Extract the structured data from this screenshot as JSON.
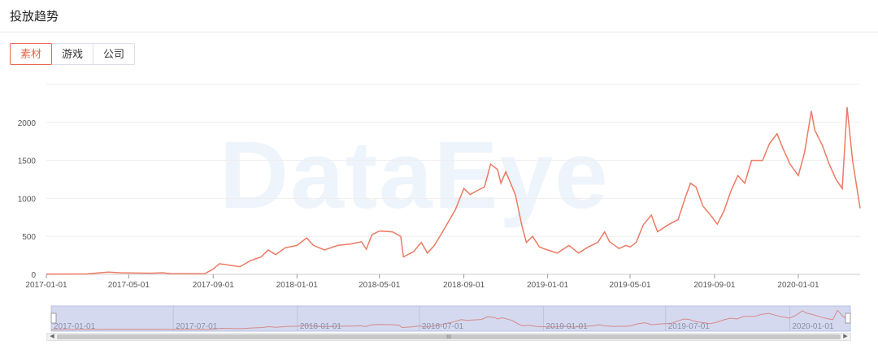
{
  "header": {
    "title": "投放趋势"
  },
  "tabs": [
    {
      "label": "素材",
      "active": true
    },
    {
      "label": "游戏",
      "active": false
    },
    {
      "label": "公司",
      "active": false
    }
  ],
  "watermark": "DataEye",
  "navigator": {
    "labels": [
      "2017-01-01",
      "2017-07-01",
      "2018-01-01",
      "2018-07-01",
      "2019-01-01",
      "2019-07-01",
      "2020-01-01"
    ],
    "scroll_grip": "III"
  },
  "colors": {
    "accent": "#e8694f",
    "line": "#ec7a63",
    "navigator_bg": "#d4d9ef"
  },
  "chart_data": {
    "type": "line",
    "title": "",
    "xlabel": "",
    "ylabel": "",
    "ylim": [
      0,
      2500
    ],
    "yticks": [
      0,
      500,
      1000,
      1500,
      2000
    ],
    "xticks": [
      "2017-01-01",
      "2017-05-01",
      "2017-09-01",
      "2018-01-01",
      "2018-05-01",
      "2018-09-01",
      "2019-01-01",
      "2019-05-01",
      "2019-09-01",
      "2020-01-01"
    ],
    "x_start": "2017-01-01",
    "x_end": "2020-03-31",
    "grid": true,
    "series": [
      {
        "values": [
          [
            "2017-01-01",
            2
          ],
          [
            "2017-03-01",
            5
          ],
          [
            "2017-04-01",
            30
          ],
          [
            "2017-04-20",
            20
          ],
          [
            "2017-06-01",
            15
          ],
          [
            "2017-06-20",
            20
          ],
          [
            "2017-07-01",
            10
          ],
          [
            "2017-08-01",
            8
          ],
          [
            "2017-08-20",
            10
          ],
          [
            "2017-09-01",
            70
          ],
          [
            "2017-09-10",
            140
          ],
          [
            "2017-09-25",
            120
          ],
          [
            "2017-10-10",
            100
          ],
          [
            "2017-10-25",
            180
          ],
          [
            "2017-11-10",
            230
          ],
          [
            "2017-11-20",
            320
          ],
          [
            "2017-12-01",
            260
          ],
          [
            "2017-12-15",
            350
          ],
          [
            "2018-01-01",
            380
          ],
          [
            "2018-01-15",
            480
          ],
          [
            "2018-01-25",
            380
          ],
          [
            "2018-02-10",
            320
          ],
          [
            "2018-03-01",
            380
          ],
          [
            "2018-03-20",
            400
          ],
          [
            "2018-04-05",
            430
          ],
          [
            "2018-04-12",
            330
          ],
          [
            "2018-04-20",
            520
          ],
          [
            "2018-05-01",
            570
          ],
          [
            "2018-05-20",
            560
          ],
          [
            "2018-06-01",
            500
          ],
          [
            "2018-06-05",
            230
          ],
          [
            "2018-06-20",
            300
          ],
          [
            "2018-07-01",
            420
          ],
          [
            "2018-07-10",
            280
          ],
          [
            "2018-07-20",
            380
          ],
          [
            "2018-08-01",
            560
          ],
          [
            "2018-08-10",
            700
          ],
          [
            "2018-08-20",
            860
          ],
          [
            "2018-09-01",
            1130
          ],
          [
            "2018-09-10",
            1050
          ],
          [
            "2018-09-20",
            1100
          ],
          [
            "2018-10-01",
            1150
          ],
          [
            "2018-10-10",
            1450
          ],
          [
            "2018-10-20",
            1380
          ],
          [
            "2018-10-25",
            1200
          ],
          [
            "2018-11-01",
            1350
          ],
          [
            "2018-11-15",
            1050
          ],
          [
            "2018-11-25",
            620
          ],
          [
            "2018-12-01",
            420
          ],
          [
            "2018-12-10",
            500
          ],
          [
            "2018-12-20",
            360
          ],
          [
            "2019-01-01",
            320
          ],
          [
            "2019-01-15",
            280
          ],
          [
            "2019-02-01",
            380
          ],
          [
            "2019-02-15",
            280
          ],
          [
            "2019-03-01",
            360
          ],
          [
            "2019-03-15",
            420
          ],
          [
            "2019-03-25",
            560
          ],
          [
            "2019-04-01",
            430
          ],
          [
            "2019-04-15",
            340
          ],
          [
            "2019-04-25",
            380
          ],
          [
            "2019-05-01",
            360
          ],
          [
            "2019-05-10",
            420
          ],
          [
            "2019-05-20",
            650
          ],
          [
            "2019-06-01",
            780
          ],
          [
            "2019-06-10",
            560
          ],
          [
            "2019-06-25",
            650
          ],
          [
            "2019-07-10",
            720
          ],
          [
            "2019-07-20",
            1000
          ],
          [
            "2019-07-28",
            1200
          ],
          [
            "2019-08-05",
            1150
          ],
          [
            "2019-08-15",
            900
          ],
          [
            "2019-08-28",
            760
          ],
          [
            "2019-09-05",
            660
          ],
          [
            "2019-09-15",
            840
          ],
          [
            "2019-09-25",
            1100
          ],
          [
            "2019-10-05",
            1300
          ],
          [
            "2019-10-15",
            1200
          ],
          [
            "2019-10-25",
            1500
          ],
          [
            "2019-11-10",
            1500
          ],
          [
            "2019-11-20",
            1720
          ],
          [
            "2019-12-01",
            1850
          ],
          [
            "2019-12-10",
            1650
          ],
          [
            "2019-12-20",
            1450
          ],
          [
            "2020-01-01",
            1300
          ],
          [
            "2020-01-10",
            1600
          ],
          [
            "2020-01-20",
            2150
          ],
          [
            "2020-01-25",
            1900
          ],
          [
            "2020-02-05",
            1700
          ],
          [
            "2020-02-15",
            1450
          ],
          [
            "2020-02-25",
            1250
          ],
          [
            "2020-03-05",
            1130
          ],
          [
            "2020-03-12",
            2200
          ],
          [
            "2020-03-20",
            1500
          ],
          [
            "2020-03-31",
            870
          ]
        ]
      }
    ]
  }
}
